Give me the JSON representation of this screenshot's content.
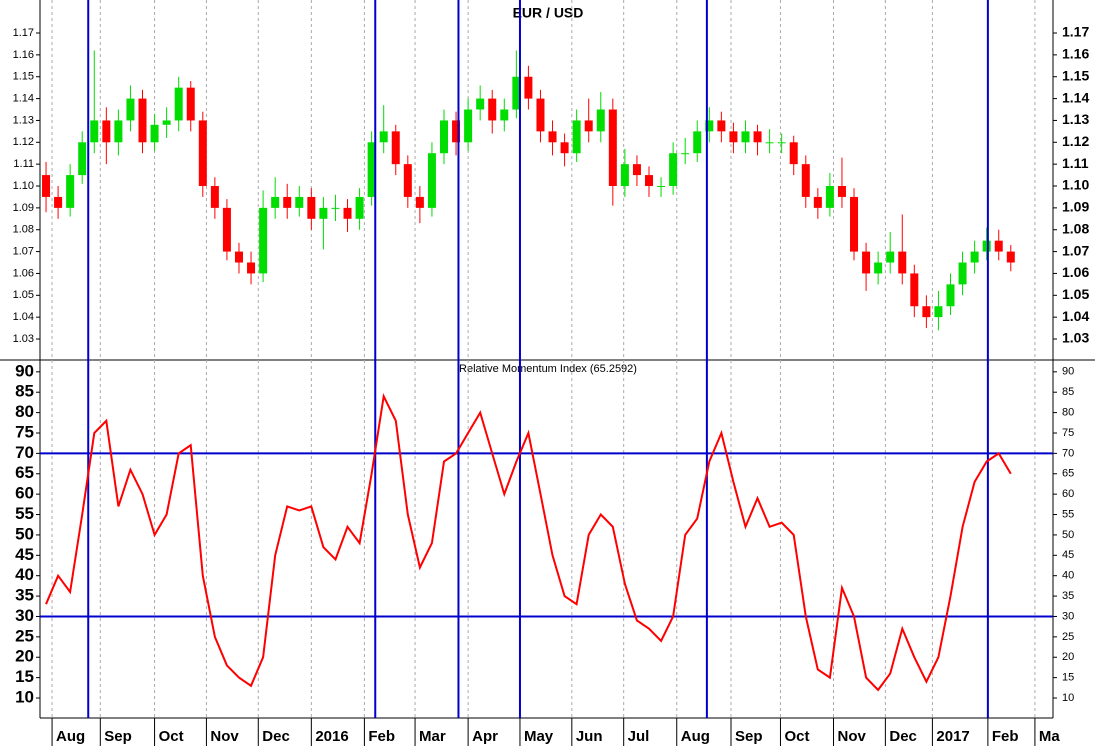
{
  "chart_data": [
    {
      "type": "candlestick",
      "title": "EUR / USD",
      "up_color": "#00dd00",
      "down_color": "#ff0000",
      "marker_color": "#0000cc",
      "xlim": [
        -0.5,
        83.5
      ],
      "vlines": [
        3.5,
        27.3,
        34.2,
        39.3,
        54.8,
        78.1
      ],
      "open": [
        1.105,
        1.095,
        1.09,
        1.105,
        1.12,
        1.13,
        1.12,
        1.13,
        1.14,
        1.12,
        1.128,
        1.13,
        1.145,
        1.13,
        1.1,
        1.09,
        1.07,
        1.065,
        1.06,
        1.09,
        1.095,
        1.09,
        1.095,
        1.085,
        1.09,
        1.09,
        1.085,
        1.095,
        1.12,
        1.125,
        1.11,
        1.095,
        1.09,
        1.115,
        1.13,
        1.12,
        1.135,
        1.14,
        1.13,
        1.135,
        1.15,
        1.14,
        1.125,
        1.12,
        1.115,
        1.13,
        1.125,
        1.135,
        1.1,
        1.11,
        1.105,
        1.1,
        1.1,
        1.115,
        1.115,
        1.125,
        1.13,
        1.125,
        1.12,
        1.125,
        1.12,
        1.12,
        1.12,
        1.11,
        1.095,
        1.09,
        1.1,
        1.095,
        1.07,
        1.06,
        1.065,
        1.07,
        1.06,
        1.045,
        1.04,
        1.045,
        1.055,
        1.065,
        1.07,
        1.075,
        1.07
      ],
      "high": [
        1.111,
        1.1,
        1.11,
        1.125,
        1.162,
        1.136,
        1.135,
        1.146,
        1.144,
        1.133,
        1.136,
        1.15,
        1.148,
        1.134,
        1.104,
        1.094,
        1.074,
        1.07,
        1.098,
        1.104,
        1.101,
        1.1,
        1.099,
        1.095,
        1.096,
        1.094,
        1.099,
        1.125,
        1.137,
        1.128,
        1.114,
        1.1,
        1.12,
        1.135,
        1.134,
        1.14,
        1.146,
        1.144,
        1.14,
        1.162,
        1.155,
        1.144,
        1.13,
        1.124,
        1.135,
        1.14,
        1.143,
        1.14,
        1.117,
        1.114,
        1.109,
        1.104,
        1.12,
        1.122,
        1.13,
        1.136,
        1.134,
        1.129,
        1.13,
        1.128,
        1.126,
        1.124,
        1.123,
        1.114,
        1.099,
        1.106,
        1.113,
        1.099,
        1.074,
        1.07,
        1.079,
        1.087,
        1.064,
        1.05,
        1.052,
        1.06,
        1.07,
        1.075,
        1.081,
        1.08,
        1.073
      ],
      "low": [
        1.088,
        1.085,
        1.086,
        1.101,
        1.115,
        1.11,
        1.114,
        1.125,
        1.115,
        1.116,
        1.122,
        1.125,
        1.125,
        1.095,
        1.085,
        1.066,
        1.06,
        1.055,
        1.056,
        1.085,
        1.085,
        1.086,
        1.08,
        1.071,
        1.084,
        1.079,
        1.08,
        1.091,
        1.115,
        1.105,
        1.09,
        1.083,
        1.086,
        1.11,
        1.114,
        1.116,
        1.13,
        1.124,
        1.125,
        1.131,
        1.135,
        1.12,
        1.114,
        1.109,
        1.111,
        1.12,
        1.12,
        1.091,
        1.095,
        1.1,
        1.095,
        1.095,
        1.096,
        1.11,
        1.111,
        1.12,
        1.12,
        1.115,
        1.115,
        1.114,
        1.115,
        1.115,
        1.105,
        1.09,
        1.085,
        1.086,
        1.09,
        1.066,
        1.052,
        1.055,
        1.06,
        1.055,
        1.04,
        1.035,
        1.034,
        1.041,
        1.05,
        1.06,
        1.066,
        1.066,
        1.061
      ],
      "close": [
        1.095,
        1.09,
        1.105,
        1.12,
        1.13,
        1.12,
        1.13,
        1.14,
        1.12,
        1.128,
        1.13,
        1.145,
        1.13,
        1.1,
        1.09,
        1.07,
        1.065,
        1.06,
        1.09,
        1.095,
        1.09,
        1.095,
        1.085,
        1.09,
        1.09,
        1.085,
        1.095,
        1.12,
        1.125,
        1.11,
        1.095,
        1.09,
        1.115,
        1.13,
        1.12,
        1.135,
        1.14,
        1.13,
        1.135,
        1.15,
        1.14,
        1.125,
        1.12,
        1.115,
        1.13,
        1.125,
        1.135,
        1.1,
        1.11,
        1.105,
        1.1,
        1.1,
        1.115,
        1.115,
        1.125,
        1.13,
        1.125,
        1.12,
        1.125,
        1.12,
        1.12,
        1.12,
        1.11,
        1.095,
        1.09,
        1.1,
        1.095,
        1.07,
        1.06,
        1.065,
        1.07,
        1.06,
        1.045,
        1.04,
        1.045,
        1.055,
        1.065,
        1.07,
        1.075,
        1.07,
        1.065
      ],
      "ylim": [
        1.0204,
        1.1851
      ],
      "yticks": [
        1.03,
        1.04,
        1.05,
        1.06,
        1.07,
        1.08,
        1.09,
        {
          "value": 1.1,
          "label": "1.10"
        },
        1.11,
        1.12,
        1.13,
        1.14,
        1.15,
        1.16,
        1.17
      ]
    },
    {
      "type": "line",
      "title": "Relative Momentum Index (65.2592)",
      "color": "#ff0000",
      "level_color": "#0000cc",
      "xlim": [
        -0.5,
        83.5
      ],
      "values": [
        33,
        40,
        36,
        55,
        75,
        78,
        57,
        66,
        60,
        50,
        55,
        70,
        72,
        40,
        25,
        18,
        15,
        13,
        20,
        45,
        57,
        56,
        57,
        47,
        44,
        52,
        48,
        65,
        84,
        78,
        55,
        42,
        48,
        68,
        70,
        75,
        80,
        70,
        60,
        68,
        75,
        60,
        45,
        35,
        33,
        50,
        55,
        52,
        38,
        29,
        27,
        24,
        30,
        50,
        54,
        68,
        75,
        63,
        52,
        59,
        52,
        53,
        50,
        30,
        17,
        15,
        37,
        30,
        15,
        12,
        16,
        27,
        20,
        14,
        20,
        35,
        52,
        63,
        68,
        70,
        65
      ],
      "hlines": [
        70,
        30
      ],
      "ylim": [
        5.1,
        92.9
      ],
      "yticks": [
        10,
        15,
        20,
        25,
        30,
        35,
        40,
        45,
        50,
        55,
        60,
        65,
        70,
        75,
        80,
        85,
        90
      ],
      "xticks": [
        {
          "value": 0.5,
          "label": "Aug"
        },
        {
          "value": 4.5,
          "label": "Sep"
        },
        {
          "value": 9.0,
          "label": "Oct"
        },
        {
          "value": 13.3,
          "label": "Nov"
        },
        {
          "value": 17.6,
          "label": "Dec"
        },
        {
          "value": 22.0,
          "label": "2016"
        },
        {
          "value": 26.4,
          "label": "Feb"
        },
        {
          "value": 30.6,
          "label": "Mar"
        },
        {
          "value": 35.0,
          "label": "Apr"
        },
        {
          "value": 39.3,
          "label": "May"
        },
        {
          "value": 43.6,
          "label": "Jun"
        },
        {
          "value": 47.9,
          "label": "Jul"
        },
        {
          "value": 52.3,
          "label": "Aug"
        },
        {
          "value": 56.8,
          "label": "Sep"
        },
        {
          "value": 60.9,
          "label": "Oct"
        },
        {
          "value": 65.3,
          "label": "Nov"
        },
        {
          "value": 69.6,
          "label": "Dec"
        },
        {
          "value": 73.5,
          "label": "2017"
        },
        {
          "value": 78.1,
          "label": "Feb"
        },
        {
          "value": 82.0,
          "label": "Ma"
        }
      ]
    }
  ]
}
